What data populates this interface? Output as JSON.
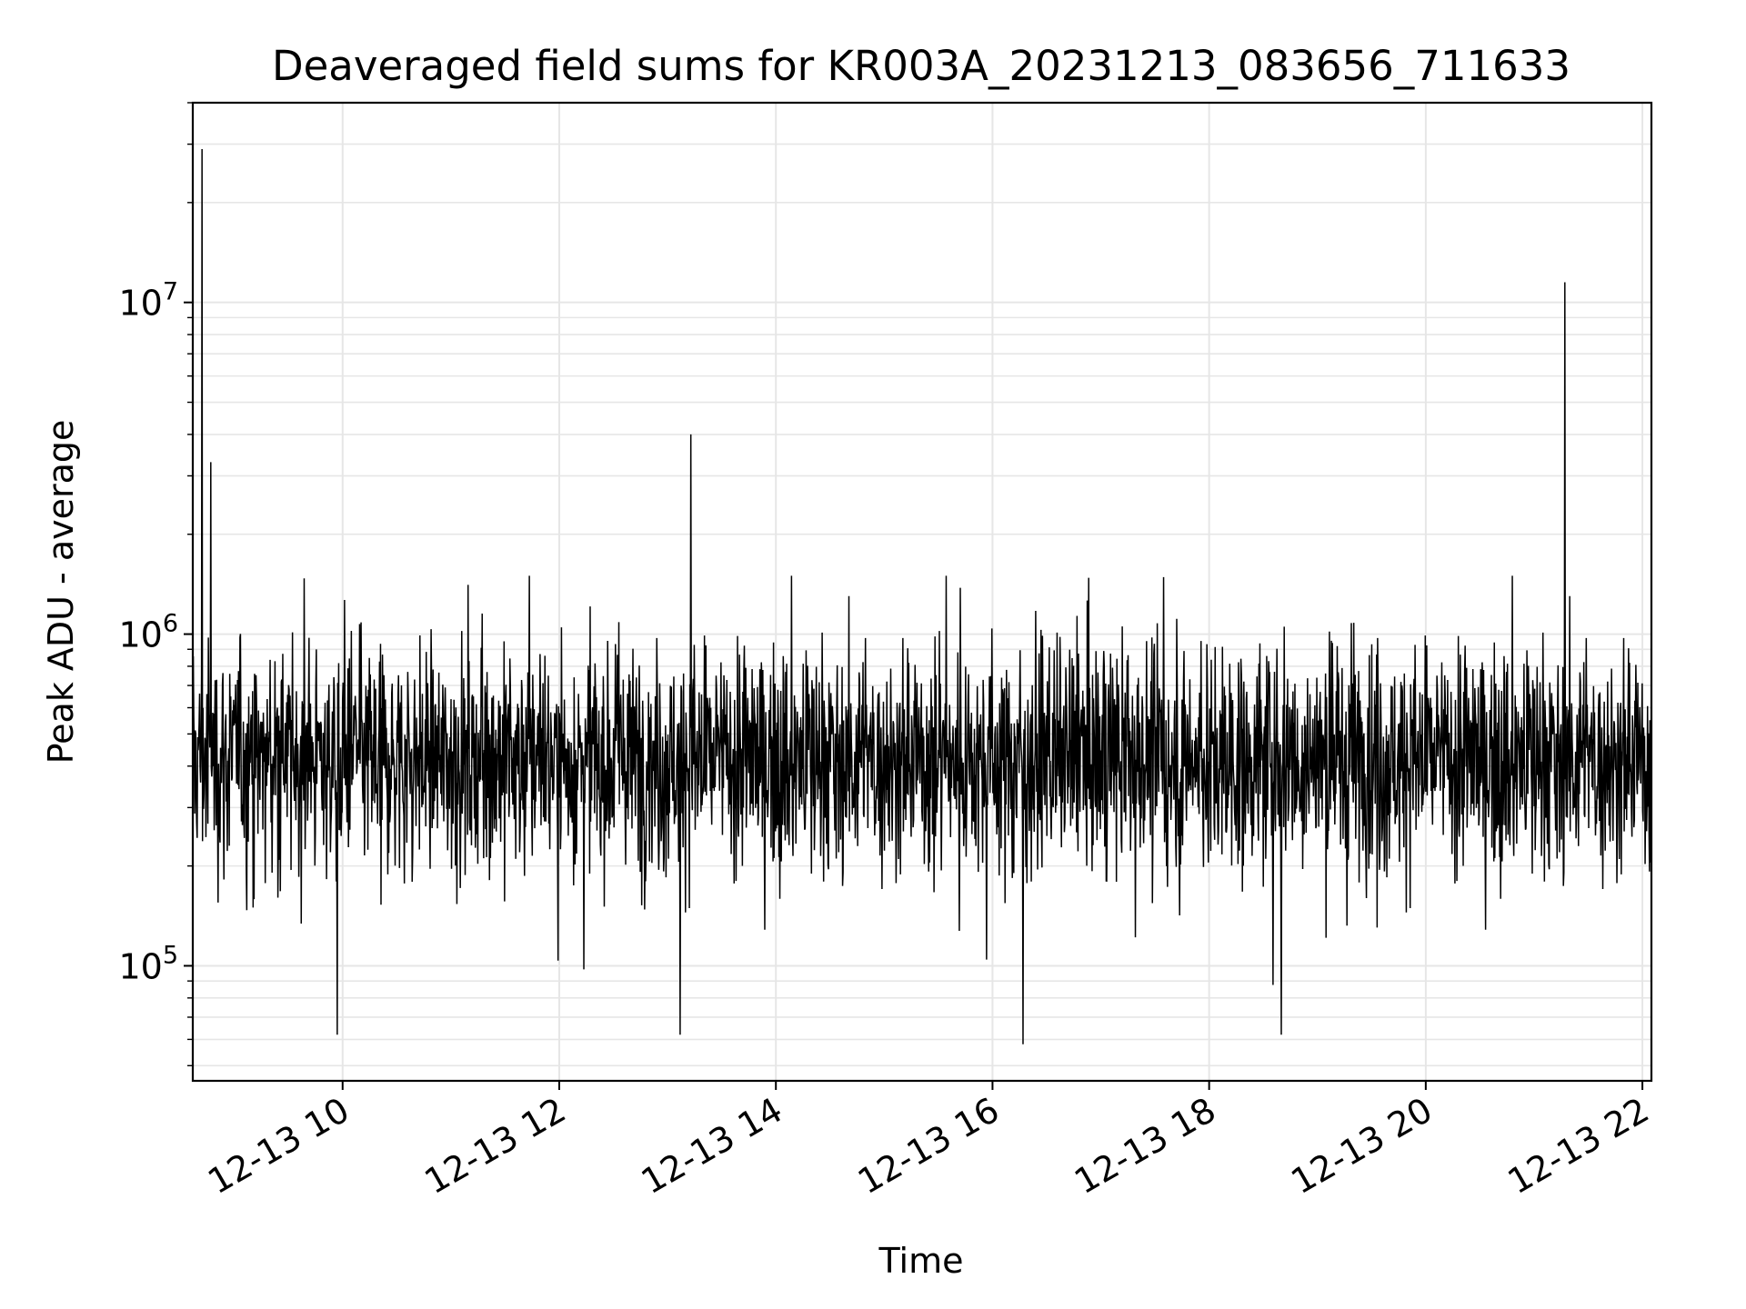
{
  "chart_data": {
    "type": "line",
    "title": "Deaveraged field sums for KR003A_20231213_083656_711633",
    "xlabel": "Time",
    "ylabel": "Peak ADU - average",
    "yscale": "log",
    "ylim": [
      45000,
      40000000
    ],
    "xlim": [
      "2023-12-13 08:37",
      "2023-12-13 22:05"
    ],
    "x_ticks": [
      "12-13 10",
      "12-13 12",
      "12-13 14",
      "12-13 16",
      "12-13 18",
      "12-13 20",
      "12-13 22"
    ],
    "y_ticks": [
      {
        "base": "10",
        "exp": "5",
        "value": 100000
      },
      {
        "base": "10",
        "exp": "6",
        "value": 1000000
      },
      {
        "base": "10",
        "exp": "7",
        "value": 10000000
      }
    ],
    "grid": true,
    "line_color": "#000000",
    "grid_color": "#e6e6e6",
    "series": [
      {
        "x_range": [
          "2023-12-13 08:37",
          "2023-12-13 22:05"
        ],
        "points_approx": 3000,
        "typical_median": 420000,
        "typical_range": [
          80000,
          1500000
        ],
        "spikes": [
          {
            "x": "2023-12-13 08:42",
            "y": 29000000
          },
          {
            "x": "2023-12-13 08:47",
            "y": 3300000
          },
          {
            "x": "2023-12-13 13:13",
            "y": 4000000
          },
          {
            "x": "2023-12-13 21:17",
            "y": 11500000
          }
        ],
        "dips": [
          {
            "x": "2023-12-13 09:57",
            "y": 62000
          },
          {
            "x": "2023-12-13 13:07",
            "y": 62000
          },
          {
            "x": "2023-12-13 16:17",
            "y": 58000
          },
          {
            "x": "2023-12-13 18:40",
            "y": 62000
          }
        ]
      }
    ]
  }
}
